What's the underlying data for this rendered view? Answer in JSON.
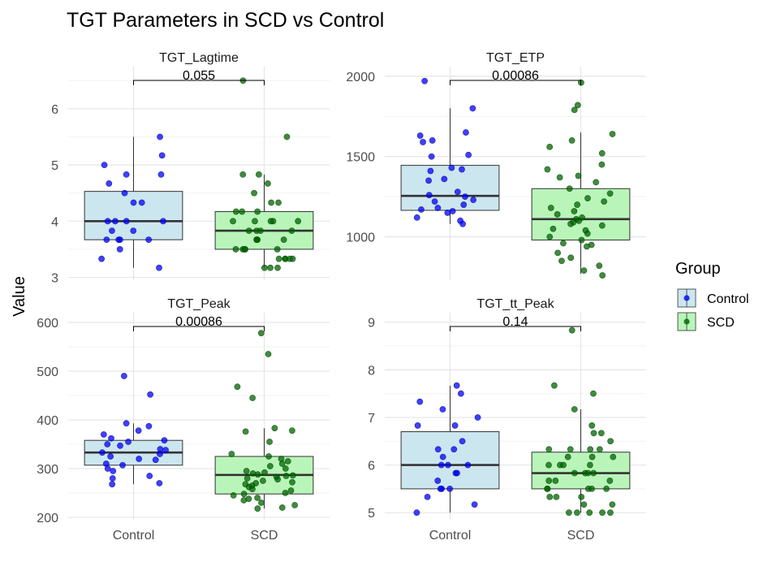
{
  "chart_data": {
    "type": "boxplot",
    "title": "TGT Parameters in SCD vs Control",
    "ylabel": "Value",
    "categories": [
      "Control",
      "SCD"
    ],
    "legend": {
      "title": "Group",
      "placement": "right",
      "entries": [
        {
          "label": "Control",
          "fill": "#cce6f0",
          "point": "#0000ff"
        },
        {
          "label": "SCD",
          "fill": "#b9f5b9",
          "point": "#006400"
        }
      ]
    },
    "grid": true,
    "panels": [
      {
        "title": "TGT_Lagtime",
        "ylim": [
          2.95,
          6.75
        ],
        "ticks": [
          3,
          4,
          5,
          6
        ],
        "pvalue": "0.055",
        "boxes": [
          {
            "group": "Control",
            "q1": 3.67,
            "median": 4.0,
            "q3": 4.53,
            "lower": 3.17,
            "upper": 5.5
          },
          {
            "group": "SCD",
            "q1": 3.5,
            "median": 3.83,
            "q3": 4.17,
            "lower": 3.17,
            "upper": 4.83
          }
        ],
        "points": [
          {
            "group": "Control",
            "y": [
              5.5,
              5.17,
              5.0,
              4.83,
              4.83,
              4.67,
              4.5,
              4.33,
              4.33,
              4.0,
              4.0,
              4.0,
              4.0,
              3.83,
              3.83,
              3.67,
              3.67,
              3.67,
              3.67,
              3.5,
              3.33,
              3.17
            ]
          },
          {
            "group": "SCD",
            "y": [
              6.5,
              5.5,
              4.83,
              4.83,
              4.67,
              4.5,
              4.33,
              4.33,
              4.17,
              4.17,
              4.17,
              4.0,
              4.0,
              4.0,
              4.0,
              4.0,
              3.83,
              3.83,
              3.83,
              3.83,
              3.67,
              3.67,
              3.67,
              3.67,
              3.5,
              3.5,
              3.5,
              3.5,
              3.5,
              3.33,
              3.33,
              3.33,
              3.33,
              3.33,
              3.17,
              3.17,
              3.17
            ]
          }
        ]
      },
      {
        "title": "TGT_ETP",
        "ylim": [
          730,
          2060
        ],
        "ticks": [
          1000,
          1500,
          2000
        ],
        "pvalue": "0.00086",
        "boxes": [
          {
            "group": "Control",
            "q1": 1165,
            "median": 1255,
            "q3": 1445,
            "lower": 1080,
            "upper": 1800
          },
          {
            "group": "SCD",
            "q1": 980,
            "median": 1110,
            "q3": 1300,
            "lower": 770,
            "upper": 1650
          }
        ],
        "points": [
          {
            "group": "Control",
            "y": [
              1970,
              1800,
              1650,
              1630,
              1600,
              1590,
              1510,
              1500,
              1430,
              1420,
              1410,
              1360,
              1350,
              1280,
              1260,
              1250,
              1230,
              1220,
              1200,
              1180,
              1170,
              1160,
              1150,
              1120,
              1100,
              1080
            ]
          },
          {
            "group": "SCD",
            "y": [
              1960,
              1820,
              1790,
              1640,
              1600,
              1560,
              1520,
              1450,
              1420,
              1380,
              1370,
              1340,
              1300,
              1270,
              1240,
              1220,
              1200,
              1180,
              1160,
              1140,
              1120,
              1110,
              1100,
              1090,
              1080,
              1070,
              1050,
              1040,
              1020,
              1000,
              980,
              960,
              950,
              940,
              900,
              870,
              850,
              820,
              790,
              760
            ]
          }
        ]
      },
      {
        "title": "TGT_Peak",
        "ylim": [
          195,
          620
        ],
        "ticks": [
          200,
          300,
          400,
          500,
          600
        ],
        "pvalue": "0.00086",
        "boxes": [
          {
            "group": "Control",
            "q1": 307,
            "median": 333,
            "q3": 358,
            "lower": 268,
            "upper": 393
          },
          {
            "group": "SCD",
            "q1": 248,
            "median": 287,
            "q3": 325,
            "lower": 218,
            "upper": 383
          }
        ],
        "points": [
          {
            "group": "Control",
            "y": [
              490,
              452,
              393,
              387,
              378,
              370,
              362,
              358,
              355,
              350,
              347,
              340,
              338,
              333,
              330,
              325,
              320,
              318,
              310,
              307,
              300,
              295,
              285,
              280,
              270,
              268
            ]
          },
          {
            "group": "SCD",
            "y": [
              578,
              535,
              468,
              445,
              383,
              378,
              376,
              355,
              330,
              325,
              320,
              315,
              310,
              305,
              300,
              295,
              292,
              290,
              288,
              286,
              285,
              283,
              280,
              278,
              275,
              272,
              270,
              268,
              265,
              262,
              258,
              255,
              250,
              248,
              245,
              240,
              238,
              235,
              230,
              225,
              220,
              218
            ]
          }
        ]
      },
      {
        "title": "TGT_tt_Peak",
        "ylim": [
          4.85,
          9.2
        ],
        "ticks": [
          5,
          6,
          7,
          8,
          9
        ],
        "pvalue": "0.14",
        "boxes": [
          {
            "group": "Control",
            "q1": 5.5,
            "median": 6.0,
            "q3": 6.7,
            "lower": 5.0,
            "upper": 7.67
          },
          {
            "group": "SCD",
            "q1": 5.5,
            "median": 5.83,
            "q3": 6.27,
            "lower": 5.0,
            "upper": 7.17
          }
        ],
        "points": [
          {
            "group": "Control",
            "y": [
              7.67,
              7.5,
              7.33,
              7.17,
              7.0,
              6.83,
              6.83,
              6.5,
              6.33,
              6.33,
              6.17,
              6.0,
              6.0,
              6.0,
              5.83,
              5.83,
              5.67,
              5.5,
              5.5,
              5.5,
              5.33,
              5.17,
              5.0
            ]
          },
          {
            "group": "SCD",
            "y": [
              8.83,
              7.67,
              7.5,
              7.17,
              6.83,
              6.67,
              6.67,
              6.5,
              6.33,
              6.33,
              6.33,
              6.33,
              6.17,
              6.17,
              6.17,
              6.0,
              6.0,
              6.0,
              6.0,
              5.83,
              5.83,
              5.83,
              5.83,
              5.67,
              5.67,
              5.67,
              5.5,
              5.5,
              5.5,
              5.5,
              5.5,
              5.33,
              5.33,
              5.33,
              5.17,
              5.17,
              5.0,
              5.0,
              5.0,
              5.0,
              5.0
            ]
          }
        ]
      }
    ]
  }
}
